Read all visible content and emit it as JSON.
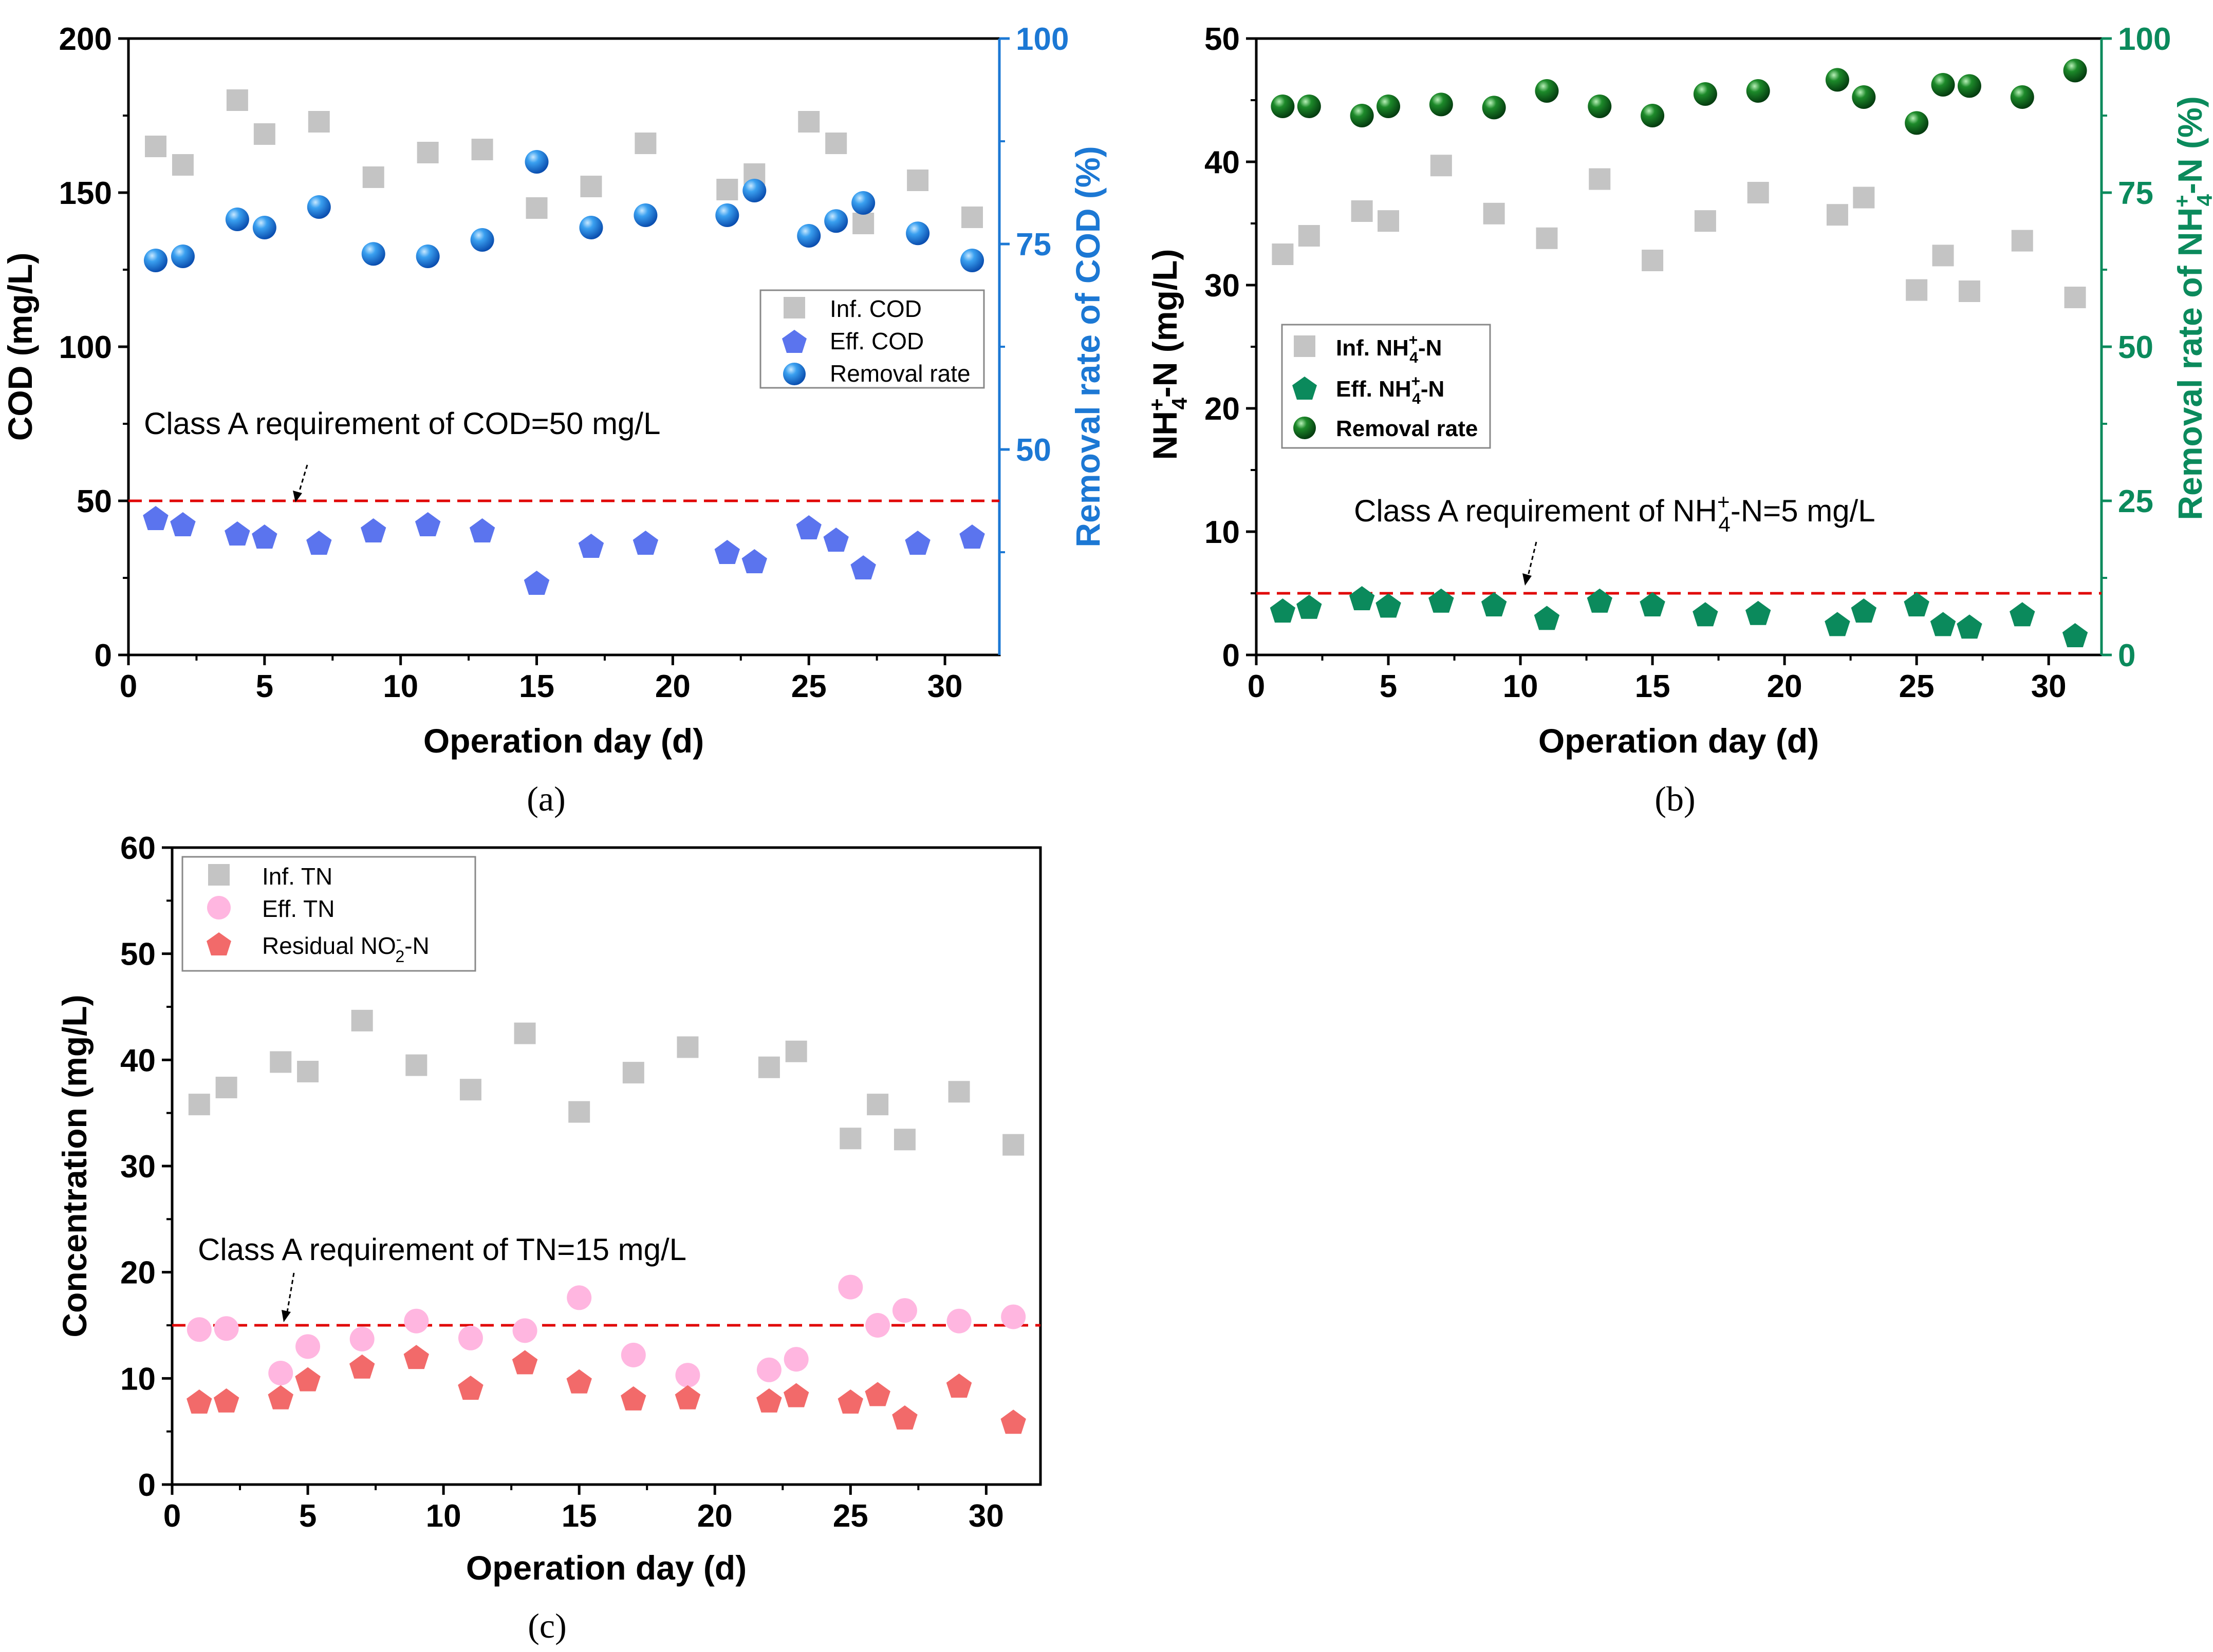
{
  "chart_data": [
    {
      "type": "scatter",
      "panel_label": "(a)",
      "xlabel": "Operation day (d)",
      "ylabel": "COD  (mg/L)",
      "y2label": "Removal rate of COD (%)",
      "xlim": [
        0,
        32
      ],
      "ylim": [
        0,
        200
      ],
      "y2lim": [
        25,
        100
      ],
      "xticks": [
        0,
        5,
        10,
        15,
        20,
        25,
        30
      ],
      "yticks": [
        0,
        50,
        100,
        150,
        200
      ],
      "y2ticks": [
        50,
        75,
        100
      ],
      "annotation": "Class A requirement of COD=50 mg/L",
      "threshold": 50,
      "legend_position": "center-right",
      "series": [
        {
          "name": "Inf. COD",
          "marker": "square",
          "axis": "left",
          "x": [
            1,
            2,
            4,
            5,
            7,
            9,
            11,
            13,
            15,
            17,
            19,
            22,
            23,
            25,
            26,
            27,
            29,
            31
          ],
          "y": [
            165,
            159,
            180,
            169,
            173,
            155,
            163,
            164,
            145,
            152,
            166,
            151,
            156,
            173,
            166,
            140,
            154,
            142
          ]
        },
        {
          "name": "Eff. COD",
          "marker": "pentagon",
          "axis": "left",
          "x": [
            1,
            2,
            4,
            5,
            7,
            9,
            11,
            13,
            15,
            17,
            19,
            22,
            23,
            25,
            26,
            27,
            29,
            31
          ],
          "y": [
            44,
            42,
            39,
            38,
            36,
            40,
            42,
            40,
            23,
            35,
            36,
            33,
            30,
            41,
            37,
            28,
            36,
            38
          ]
        },
        {
          "name": "Removal rate",
          "marker": "sphere",
          "axis": "right",
          "x": [
            1,
            2,
            4,
            5,
            7,
            9,
            11,
            13,
            15,
            17,
            19,
            22,
            23,
            25,
            26,
            27,
            29,
            31
          ],
          "y": [
            73,
            73.5,
            78,
            77,
            79.5,
            73.8,
            73.5,
            75.5,
            85,
            77,
            78.5,
            78.5,
            81.5,
            76,
            77.8,
            80,
            76.3,
            73
          ]
        }
      ]
    },
    {
      "type": "scatter",
      "panel_label": "(b)",
      "xlabel": "Operation day (d)",
      "ylabel_main": "NH",
      "ylabel_sup": "+",
      "ylabel_sub": "4",
      "ylabel_tail": "-N  (mg/L)",
      "y2label_main": "Removal rate of NH",
      "y2label_sup": "+",
      "y2label_sub": "4",
      "y2label_tail": "-N (%)",
      "xlim": [
        0,
        32
      ],
      "ylim": [
        0,
        50
      ],
      "y2lim": [
        0,
        100
      ],
      "xticks": [
        0,
        5,
        10,
        15,
        20,
        25,
        30
      ],
      "yticks": [
        0,
        10,
        20,
        30,
        40,
        50
      ],
      "y2ticks": [
        0,
        25,
        50,
        75,
        100
      ],
      "annotation_main": "Class A requirement of NH",
      "annotation_sup": "+",
      "annotation_sub": "4",
      "annotation_tail": "-N=5 mg/L",
      "threshold": 5,
      "legend_position": "center-left",
      "legend_sup": "+",
      "legend_sub": "4",
      "legend_tail": "-N",
      "series": [
        {
          "name": "Inf. NH",
          "marker": "square",
          "axis": "left",
          "x": [
            1,
            2,
            4,
            5,
            7,
            9,
            11,
            13,
            15,
            17,
            19,
            22,
            23,
            25,
            26,
            27,
            29,
            31
          ],
          "y": [
            32.5,
            34,
            36,
            35.2,
            39.7,
            35.8,
            33.8,
            38.6,
            32,
            35.2,
            37.5,
            35.7,
            37.1,
            29.6,
            32.4,
            29.5,
            33.6,
            29
          ]
        },
        {
          "name": "Eff. NH",
          "marker": "pentagon",
          "axis": "left",
          "x": [
            1,
            2,
            4,
            5,
            7,
            9,
            11,
            13,
            15,
            17,
            19,
            22,
            23,
            25,
            26,
            27,
            29,
            31
          ],
          "y": [
            3.5,
            3.8,
            4.5,
            3.9,
            4.3,
            4,
            2.9,
            4.3,
            4,
            3.2,
            3.3,
            2.4,
            3.5,
            4.0,
            2.4,
            2.2,
            3.2,
            1.5
          ]
        },
        {
          "name": "Removal rate",
          "marker": "sphere",
          "axis": "right",
          "x": [
            1,
            2,
            4,
            5,
            7,
            9,
            11,
            13,
            15,
            17,
            19,
            22,
            23,
            25,
            26,
            27,
            29,
            31
          ],
          "y": [
            89,
            89,
            87.5,
            89,
            89.3,
            88.8,
            91.5,
            89,
            87.5,
            91,
            91.5,
            93.3,
            90.5,
            86.3,
            92.5,
            92.3,
            90.5,
            94.8
          ]
        }
      ]
    },
    {
      "type": "scatter",
      "panel_label": "(c)",
      "xlabel": "Operation day (d)",
      "ylabel": "Concentration (mg/L)",
      "xlim": [
        0,
        32
      ],
      "ylim": [
        0,
        60
      ],
      "xticks": [
        0,
        5,
        10,
        15,
        20,
        25,
        30
      ],
      "yticks": [
        0,
        10,
        20,
        30,
        40,
        50,
        60
      ],
      "annotation": "Class A requirement of TN=15 mg/L",
      "threshold": 15,
      "legend_position": "top-left",
      "series": [
        {
          "name": "Inf. TN",
          "marker": "square",
          "x": [
            1,
            2,
            4,
            5,
            7,
            9,
            11,
            13,
            15,
            17,
            19,
            22,
            23,
            25,
            26,
            27,
            29,
            31
          ],
          "y": [
            35.8,
            37.4,
            39.8,
            38.9,
            43.7,
            39.5,
            37.2,
            42.5,
            35.1,
            38.8,
            41.2,
            39.3,
            40.8,
            32.6,
            35.8,
            32.5,
            37,
            32
          ]
        },
        {
          "name": "Eff. TN",
          "marker": "circle",
          "x": [
            1,
            2,
            4,
            5,
            7,
            9,
            11,
            13,
            15,
            17,
            19,
            22,
            23,
            25,
            26,
            27,
            29,
            31
          ],
          "y": [
            14.6,
            14.7,
            10.5,
            13,
            13.7,
            15.4,
            13.8,
            14.5,
            17.6,
            12.2,
            10.3,
            10.8,
            11.8,
            18.6,
            15,
            16.4,
            15.4,
            15.8
          ]
        },
        {
          "name": "Residual NO",
          "name_sup": "-",
          "name_sub": "2",
          "name_tail": "-N",
          "marker": "pentagon",
          "x": [
            1,
            2,
            4,
            5,
            7,
            9,
            11,
            13,
            15,
            17,
            19,
            22,
            23,
            25,
            26,
            27,
            29,
            31
          ],
          "y": [
            7.7,
            7.8,
            8.1,
            9.8,
            11,
            11.9,
            9,
            11.4,
            9.6,
            8,
            8.1,
            7.8,
            8.3,
            7.7,
            8.4,
            6.2,
            9.2,
            5.8
          ]
        }
      ]
    }
  ],
  "colors": {
    "inf_gray": "#c4c4c4",
    "cod_blue": "#5b74ee",
    "cod_axis_blue": "#1c78d4",
    "nh4_green": "#0b8a5c",
    "nh4_dark_green": "#106a22",
    "tn_pink": "#ffb6e0",
    "no2_red": "#f26a6a",
    "threshold_red": "#e00000"
  }
}
